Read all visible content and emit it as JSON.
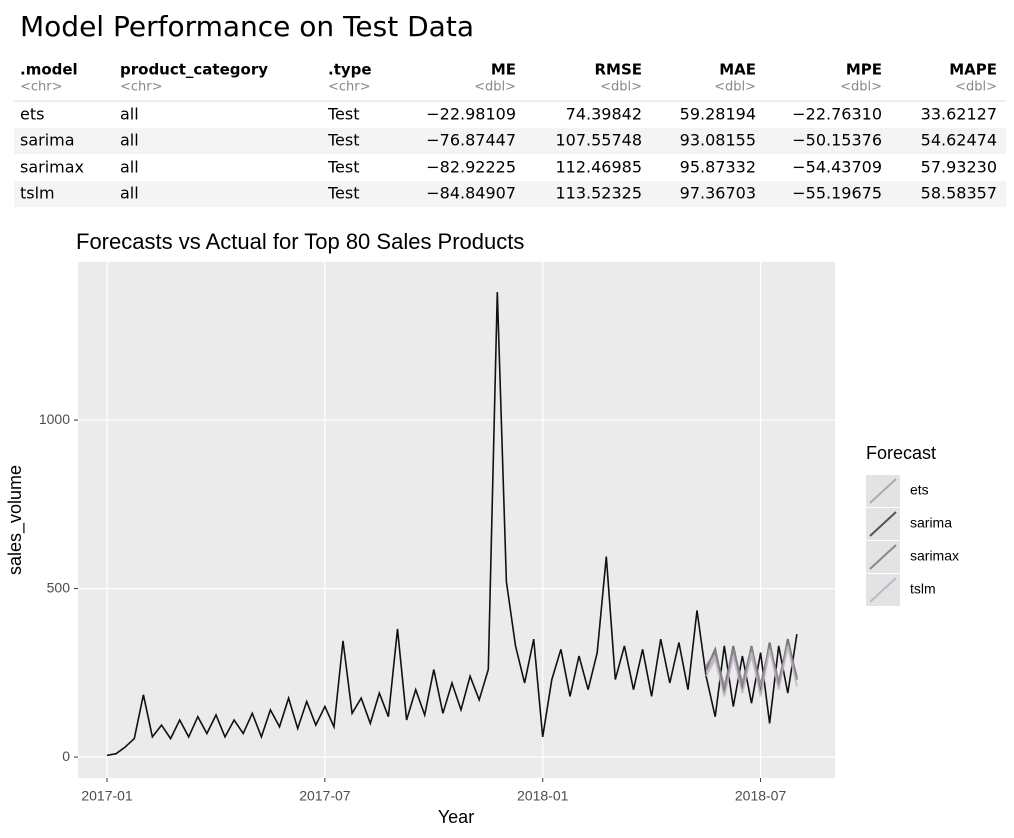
{
  "title": "Model Performance on Test Data",
  "table": {
    "columns": [
      ".model",
      "product_category",
      ".type",
      "ME",
      "RMSE",
      "MAE",
      "MPE",
      "MAPE"
    ],
    "types": [
      "<chr>",
      "<chr>",
      "<chr>",
      "<dbl>",
      "<dbl>",
      "<dbl>",
      "<dbl>",
      "<dbl>"
    ],
    "rows": [
      [
        "ets",
        "all",
        "Test",
        "−22.98109",
        "74.39842",
        "59.28194",
        "−22.76310",
        "33.62127"
      ],
      [
        "sarima",
        "all",
        "Test",
        "−76.87447",
        "107.55748",
        "93.08155",
        "−50.15376",
        "54.62474"
      ],
      [
        "sarimax",
        "all",
        "Test",
        "−82.92225",
        "112.46985",
        "95.87332",
        "−54.43709",
        "57.93230"
      ],
      [
        "tslm",
        "all",
        "Test",
        "−84.84907",
        "113.52325",
        "97.36703",
        "−55.19675",
        "58.58357"
      ]
    ]
  },
  "chart_data": {
    "type": "line",
    "title": "Forecasts vs Actual for Top 80 Sales Products",
    "x_label": "Year",
    "y_label": "sales_volume",
    "legend_title": "Forecast",
    "xlim": [
      -0.8,
      20.05
    ],
    "xticks": [
      {
        "value": 0,
        "label": "2017-01"
      },
      {
        "value": 6,
        "label": "2017-07"
      },
      {
        "value": 12,
        "label": "2018-01"
      },
      {
        "value": 18,
        "label": "2018-07"
      }
    ],
    "ylim": [
      -62,
      1469
    ],
    "yticks": [
      0,
      500,
      1000
    ],
    "grid": true,
    "series": [
      {
        "color": "#111111",
        "x": [
          0,
          0.25,
          0.5,
          0.75,
          1,
          1.25,
          1.5,
          1.75,
          2,
          2.25,
          2.5,
          2.75,
          3,
          3.25,
          3.5,
          3.75,
          4,
          4.25,
          4.5,
          4.75,
          5,
          5.25,
          5.5,
          5.75,
          6,
          6.25,
          6.5,
          6.75,
          7,
          7.25,
          7.5,
          7.75,
          8,
          8.25,
          8.5,
          8.75,
          9,
          9.25,
          9.5,
          9.75,
          10,
          10.25,
          10.5,
          10.75,
          11,
          11.25,
          11.5,
          11.75,
          12,
          12.25,
          12.5,
          12.75,
          13,
          13.25,
          13.5,
          13.75,
          14,
          14.25,
          14.5,
          14.75,
          15,
          15.25,
          15.5,
          15.75,
          16,
          16.25,
          16.5,
          16.75,
          17,
          17.25,
          17.5,
          17.75,
          18,
          18.25,
          18.5,
          18.75,
          19
        ],
        "values": [
          5,
          10,
          30,
          55,
          185,
          60,
          95,
          55,
          110,
          60,
          120,
          70,
          125,
          60,
          110,
          70,
          130,
          60,
          140,
          90,
          175,
          85,
          165,
          95,
          150,
          90,
          345,
          130,
          175,
          100,
          190,
          120,
          380,
          110,
          200,
          125,
          260,
          130,
          220,
          140,
          240,
          170,
          260,
          1380,
          520,
          330,
          220,
          350,
          60,
          230,
          320,
          180,
          300,
          200,
          310,
          595,
          230,
          330,
          200,
          320,
          180,
          350,
          220,
          340,
          200,
          435,
          240,
          120,
          330,
          150,
          300,
          160,
          310,
          100,
          330,
          190,
          365
        ]
      },
      {
        "name": "ets",
        "color": "#aaaaaa",
        "x": [
          16.5,
          16.75,
          17,
          17.25,
          17.5,
          17.75,
          18,
          18.25,
          18.5,
          18.75,
          19
        ],
        "values": [
          250,
          300,
          200,
          310,
          210,
          300,
          200,
          320,
          220,
          330,
          240
        ]
      },
      {
        "name": "sarima",
        "color": "#555555",
        "x": [
          16.5,
          16.75,
          17,
          17.25,
          17.5,
          17.75,
          18,
          18.25,
          18.5,
          18.75,
          19
        ],
        "values": [
          260,
          320,
          190,
          330,
          200,
          330,
          190,
          340,
          210,
          350,
          230
        ]
      },
      {
        "name": "sarimax",
        "color": "#888888",
        "x": [
          16.5,
          16.75,
          17,
          17.25,
          17.5,
          17.75,
          18,
          18.25,
          18.5,
          18.75,
          19
        ],
        "values": [
          270,
          310,
          210,
          320,
          220,
          325,
          215,
          330,
          225,
          340,
          230
        ]
      },
      {
        "name": "tslm",
        "color": "#c4b4c8",
        "x": [
          16.5,
          16.75,
          17,
          17.25,
          17.5,
          17.75,
          18,
          18.25,
          18.5,
          18.75,
          19
        ],
        "values": [
          240,
          290,
          180,
          300,
          190,
          310,
          180,
          320,
          200,
          330,
          210
        ]
      }
    ]
  }
}
